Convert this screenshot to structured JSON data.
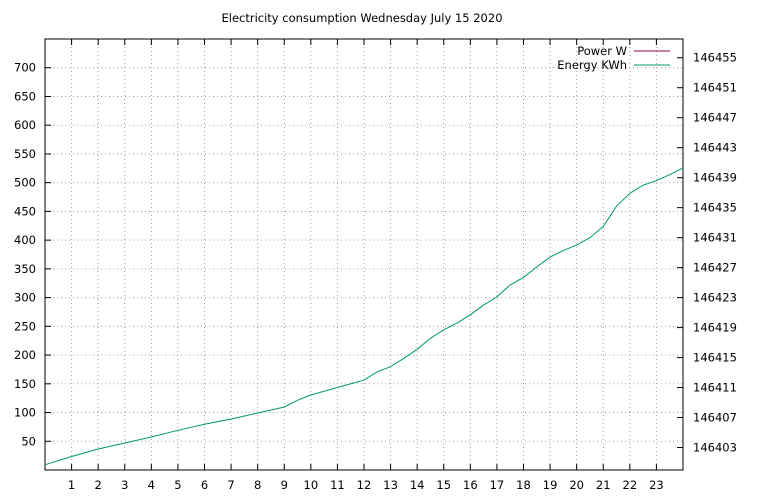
{
  "chart_data": {
    "type": "line",
    "title": "Electricity consumption Wednesday July 15 2020",
    "xlim": [
      0,
      24
    ],
    "x_ticks": [
      1,
      2,
      3,
      4,
      5,
      6,
      7,
      8,
      9,
      10,
      11,
      12,
      13,
      14,
      15,
      16,
      17,
      18,
      19,
      20,
      21,
      22,
      23
    ],
    "y_left": {
      "ylim": [
        0,
        750
      ],
      "ticks": [
        50,
        100,
        150,
        200,
        250,
        300,
        350,
        400,
        450,
        500,
        550,
        600,
        650,
        700
      ]
    },
    "y_right": {
      "ylim": [
        146400,
        146457.5
      ],
      "ticks": [
        146403,
        146407,
        146411,
        146415,
        146419,
        146423,
        146427,
        146431,
        146435,
        146439,
        146443,
        146447,
        146451,
        146455
      ]
    },
    "grid": true,
    "legend_position": "top-right",
    "series": [
      {
        "name": "Power W",
        "axis": "left",
        "color": "#94004f",
        "x": [],
        "y": []
      },
      {
        "name": "Energy KWh",
        "axis": "right",
        "color": "#00966e",
        "x": [
          0,
          1,
          2,
          3,
          4,
          5,
          6,
          7,
          8,
          9,
          9.5,
          10,
          11,
          12,
          12.5,
          13,
          13.5,
          14,
          14.5,
          15,
          15.5,
          16,
          16.5,
          17,
          17.5,
          18,
          18.5,
          19,
          19.5,
          20,
          20.5,
          21,
          21.5,
          22,
          22.5,
          23,
          23.5,
          24
        ],
        "y": [
          146400.7,
          146401.8,
          146402.8,
          146403.6,
          146404.4,
          146405.3,
          146406.1,
          146406.8,
          146407.6,
          146408.4,
          146409.3,
          146410.0,
          146411.0,
          146412.0,
          146413.1,
          146413.8,
          146414.9,
          146416.1,
          146417.6,
          146418.7,
          146419.6,
          146420.7,
          146422.0,
          146423.1,
          146424.7,
          146425.7,
          146427.1,
          146428.4,
          146429.3,
          146430.0,
          146431.0,
          146432.5,
          146435.2,
          146436.9,
          146438.0,
          146438.6,
          146439.4,
          146440.3
        ]
      }
    ]
  }
}
